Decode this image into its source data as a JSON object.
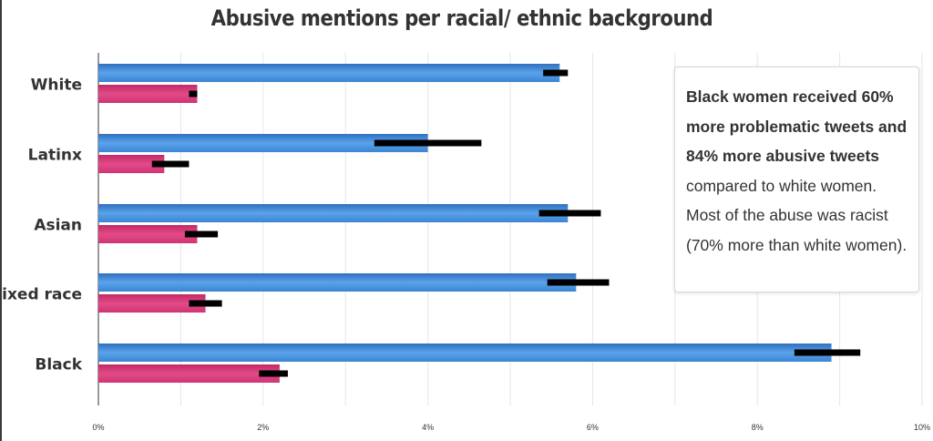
{
  "chart_data": {
    "type": "bar",
    "orientation": "horizontal",
    "title": "Abusive mentions per racial/ ethnic background",
    "categories": [
      "White",
      "Latinx",
      "Asian",
      "Mixed race",
      "Black"
    ],
    "series": [
      {
        "color": "#4a90d9",
        "values": [
          5.6,
          4.0,
          5.7,
          5.8,
          8.9
        ],
        "error_low": [
          5.4,
          3.35,
          5.35,
          5.45,
          8.45
        ],
        "error_high": [
          5.7,
          4.65,
          6.1,
          6.2,
          9.25
        ]
      },
      {
        "color": "#d63a78",
        "values": [
          1.2,
          0.8,
          1.2,
          1.3,
          2.2
        ],
        "error_low": [
          1.1,
          0.65,
          1.05,
          1.1,
          1.95
        ],
        "error_high": [
          1.2,
          1.1,
          1.45,
          1.5,
          2.3
        ]
      }
    ],
    "xlim": [
      0,
      10
    ],
    "xticks": [
      "0%",
      "2%",
      "4%",
      "6%",
      "8%",
      "10%"
    ],
    "grid": true
  },
  "annotation": {
    "bold_text": "Black women received 60% more problematic tweets and 84% more abusive tweets",
    "plain_text": " compared to white women. Most of the abuse was racist (70% more than white women)."
  }
}
